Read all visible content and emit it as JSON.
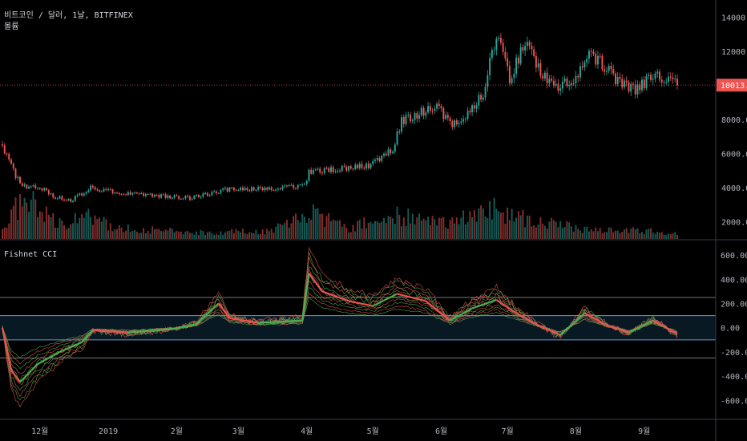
{
  "header": {
    "symbol_line": "비트코인 / 달러, 1날, BITFINEX",
    "volume_label": "볼륨",
    "indicator_label": "Fishnet CCI"
  },
  "colors": {
    "background": "#000000",
    "up": "#26a69a",
    "down": "#ef5350",
    "cci_bull": "#4caf50",
    "cci_bear": "#ef5350",
    "band_line": "#5b9bd5",
    "outer_line": "#9e9e9e",
    "price_line": "#ef5350",
    "axis_text": "#b2b5be",
    "separator": "#363a45"
  },
  "chart_data": [
    {
      "type": "candlestick",
      "title": "비트코인 / 달러, 1날, BITFINEX",
      "y_ticks": [
        2000,
        4000,
        6000,
        8000,
        10000,
        12000,
        14000
      ],
      "y_tick_labels": [
        "2000.0",
        "4000.0",
        "6000.0",
        "8000.0",
        "10000.0",
        "12000.0",
        "14000.0"
      ],
      "ylim": [
        1000,
        15000
      ],
      "x_tick_labels": [
        "12월",
        "2019",
        "2월",
        "3월",
        "4월",
        "5월",
        "6월",
        "7월",
        "8월",
        "9월"
      ],
      "last_price": 10013.0,
      "last_price_label": "10013.0",
      "close_anchors": [
        {
          "date": "2018-11-14",
          "close": 6400
        },
        {
          "date": "2018-11-20",
          "close": 4700
        },
        {
          "date": "2018-11-25",
          "close": 3900
        },
        {
          "date": "2018-11-30",
          "close": 4100
        },
        {
          "date": "2018-12-07",
          "close": 3500
        },
        {
          "date": "2018-12-15",
          "close": 3250
        },
        {
          "date": "2018-12-24",
          "close": 4000
        },
        {
          "date": "2019-01-01",
          "close": 3800
        },
        {
          "date": "2019-01-15",
          "close": 3600
        },
        {
          "date": "2019-02-07",
          "close": 3400
        },
        {
          "date": "2019-02-24",
          "close": 3900
        },
        {
          "date": "2019-03-15",
          "close": 3950
        },
        {
          "date": "2019-03-31",
          "close": 4100
        },
        {
          "date": "2019-04-02",
          "close": 4900
        },
        {
          "date": "2019-04-15",
          "close": 5100
        },
        {
          "date": "2019-04-30",
          "close": 5300
        },
        {
          "date": "2019-05-10",
          "close": 6300
        },
        {
          "date": "2019-05-14",
          "close": 7900
        },
        {
          "date": "2019-05-26",
          "close": 8600
        },
        {
          "date": "2019-05-30",
          "close": 8800
        },
        {
          "date": "2019-06-05",
          "close": 7700
        },
        {
          "date": "2019-06-12",
          "close": 8200
        },
        {
          "date": "2019-06-20",
          "close": 9600
        },
        {
          "date": "2019-06-26",
          "close": 13000
        },
        {
          "date": "2019-07-02",
          "close": 10400
        },
        {
          "date": "2019-07-09",
          "close": 12500
        },
        {
          "date": "2019-07-16",
          "close": 10800
        },
        {
          "date": "2019-07-22",
          "close": 9800
        },
        {
          "date": "2019-08-01",
          "close": 10400
        },
        {
          "date": "2019-08-06",
          "close": 11800
        },
        {
          "date": "2019-08-13",
          "close": 11300
        },
        {
          "date": "2019-08-20",
          "close": 10200
        },
        {
          "date": "2019-08-28",
          "close": 9700
        },
        {
          "date": "2019-09-05",
          "close": 10600
        },
        {
          "date": "2019-09-12",
          "close": 10300
        },
        {
          "date": "2019-09-16",
          "close": 10013
        }
      ],
      "volume_anchors": [
        {
          "date": "2018-11-14",
          "volume": 0.25
        },
        {
          "date": "2018-11-20",
          "volume": 0.7
        },
        {
          "date": "2018-11-28",
          "volume": 0.8
        },
        {
          "date": "2018-12-10",
          "volume": 0.35
        },
        {
          "date": "2018-12-20",
          "volume": 0.55
        },
        {
          "date": "2019-01-05",
          "volume": 0.25
        },
        {
          "date": "2019-02-10",
          "volume": 0.15
        },
        {
          "date": "2019-03-15",
          "volume": 0.18
        },
        {
          "date": "2019-04-02",
          "volume": 0.6
        },
        {
          "date": "2019-04-20",
          "volume": 0.25
        },
        {
          "date": "2019-05-12",
          "volume": 0.55
        },
        {
          "date": "2019-05-30",
          "volume": 0.35
        },
        {
          "date": "2019-06-26",
          "volume": 0.7
        },
        {
          "date": "2019-07-10",
          "volume": 0.45
        },
        {
          "date": "2019-08-01",
          "volume": 0.25
        },
        {
          "date": "2019-09-16",
          "volume": 0.15
        }
      ]
    },
    {
      "type": "line",
      "title": "Fishnet CCI",
      "series_count": 10,
      "y_ticks": [
        -600,
        -400,
        -200,
        0,
        200,
        400,
        600
      ],
      "y_tick_labels": [
        "-600.00",
        "-400.00",
        "-200.00",
        "0.00",
        "200.00",
        "400.00",
        "600.00"
      ],
      "ylim": [
        -750,
        720
      ],
      "band_levels": [
        -100,
        100
      ],
      "outer_levels": [
        -250,
        250
      ],
      "cci_anchors": [
        {
          "date": "2018-11-14",
          "cci": 0
        },
        {
          "date": "2018-11-18",
          "cci": -350
        },
        {
          "date": "2018-11-22",
          "cci": -450
        },
        {
          "date": "2018-11-30",
          "cci": -300
        },
        {
          "date": "2018-12-10",
          "cci": -200
        },
        {
          "date": "2018-12-20",
          "cci": -120
        },
        {
          "date": "2018-12-25",
          "cci": -20
        },
        {
          "date": "2019-01-10",
          "cci": -40
        },
        {
          "date": "2019-01-30",
          "cci": -10
        },
        {
          "date": "2019-02-10",
          "cci": 30
        },
        {
          "date": "2019-02-20",
          "cci": 200
        },
        {
          "date": "2019-02-25",
          "cci": 80
        },
        {
          "date": "2019-03-10",
          "cci": 40
        },
        {
          "date": "2019-03-30",
          "cci": 60
        },
        {
          "date": "2019-04-02",
          "cci": 450
        },
        {
          "date": "2019-04-08",
          "cci": 300
        },
        {
          "date": "2019-04-20",
          "cci": 220
        },
        {
          "date": "2019-05-01",
          "cci": 180
        },
        {
          "date": "2019-05-12",
          "cci": 280
        },
        {
          "date": "2019-05-25",
          "cci": 220
        },
        {
          "date": "2019-06-05",
          "cci": 60
        },
        {
          "date": "2019-06-15",
          "cci": 160
        },
        {
          "date": "2019-06-26",
          "cci": 230
        },
        {
          "date": "2019-07-05",
          "cci": 120
        },
        {
          "date": "2019-07-15",
          "cci": 20
        },
        {
          "date": "2019-07-25",
          "cci": -60
        },
        {
          "date": "2019-08-05",
          "cci": 120
        },
        {
          "date": "2019-08-15",
          "cci": 20
        },
        {
          "date": "2019-08-25",
          "cci": -40
        },
        {
          "date": "2019-09-05",
          "cci": 60
        },
        {
          "date": "2019-09-16",
          "cci": -50
        }
      ]
    }
  ]
}
